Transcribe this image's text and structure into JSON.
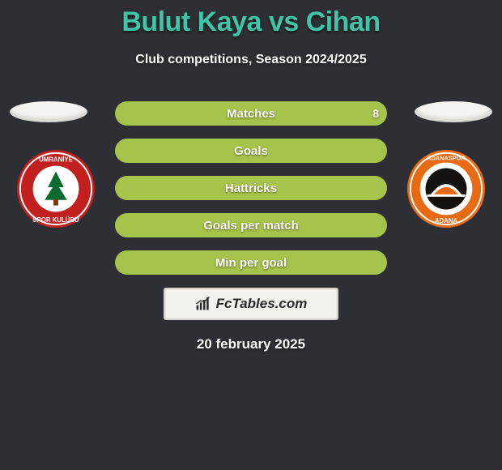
{
  "title": "Bulut Kaya vs Cihan",
  "subtitle": "Club competitions, Season 2024/2025",
  "date": "20 february 2025",
  "brand": "FcTables.com",
  "colors": {
    "accent": "#40c5a6",
    "pill_primary": "#a6c34b",
    "pill_secondary": "#7d9a2b",
    "bg": "#2d2f34"
  },
  "crests": {
    "left": {
      "name": "umraniye-spor",
      "outer": "#c21f1f",
      "inner": "#ffffff",
      "accent": "#0b6b2e",
      "text": "ÜMRANİYE"
    },
    "right": {
      "name": "adanaspor",
      "outer": "#e86a12",
      "inner": "#ffffff",
      "accent": "#15110e",
      "text": "ADANASPOR"
    }
  },
  "bars": [
    {
      "key": "matches",
      "label": "Matches",
      "left_value": "",
      "right_value": "8",
      "left_pct": 0,
      "right_pct": 100,
      "left_color": "#7d9a2b",
      "right_color": "#a6c34b"
    },
    {
      "key": "goals",
      "label": "Goals",
      "left_value": "",
      "right_value": "",
      "left_pct": 0,
      "right_pct": 100,
      "left_color": "#7d9a2b",
      "right_color": "#a6c34b"
    },
    {
      "key": "hattricks",
      "label": "Hattricks",
      "left_value": "",
      "right_value": "",
      "left_pct": 0,
      "right_pct": 100,
      "left_color": "#7d9a2b",
      "right_color": "#a6c34b"
    },
    {
      "key": "goals-per-match",
      "label": "Goals per match",
      "left_value": "",
      "right_value": "",
      "left_pct": 0,
      "right_pct": 100,
      "left_color": "#7d9a2b",
      "right_color": "#a6c34b"
    },
    {
      "key": "min-per-goal",
      "label": "Min per goal",
      "left_value": "",
      "right_value": "",
      "left_pct": 0,
      "right_pct": 100,
      "left_color": "#7d9a2b",
      "right_color": "#a6c34b"
    }
  ]
}
